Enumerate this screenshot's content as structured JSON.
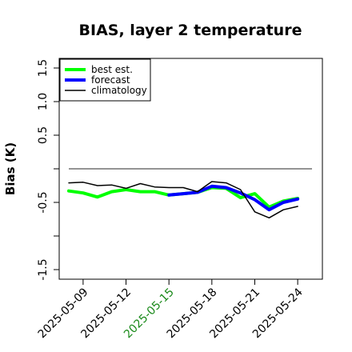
{
  "chart_data": {
    "type": "line",
    "title": "BIAS, layer 2 temperature",
    "xlabel": "",
    "ylabel": "Bias (K)",
    "ylim": [
      -1.6,
      1.6
    ],
    "y_ticks": [
      -1.5,
      -1.0,
      -0.5,
      0.0,
      0.5,
      1.0,
      1.5
    ],
    "y_tick_labels": [
      "-1.5",
      "",
      "-0.5",
      "",
      "0.5",
      "1.0",
      "1.5"
    ],
    "x_tick_labels": [
      "2025-05-09",
      "2025-05-12",
      "2025-05-15",
      "2025-05-18",
      "2025-05-21",
      "2025-05-24"
    ],
    "x_tick_label_colors": [
      "#000000",
      "#000000",
      "#1a8a1a",
      "#000000",
      "#000000",
      "#000000"
    ],
    "x_start": "2025-05-08",
    "x_end": "2025-05-25",
    "reference_line": 0.0,
    "legend_position": "top-left",
    "grid": false,
    "series": [
      {
        "name": "best est.",
        "color": "#00ff00",
        "dates": [
          "2025-05-08",
          "2025-05-09",
          "2025-05-10",
          "2025-05-11",
          "2025-05-12",
          "2025-05-13",
          "2025-05-14",
          "2025-05-15",
          "2025-05-16",
          "2025-05-17",
          "2025-05-18",
          "2025-05-19",
          "2025-05-20",
          "2025-05-21",
          "2025-05-22",
          "2025-05-23",
          "2025-05-24"
        ],
        "values": [
          -0.33,
          -0.36,
          -0.42,
          -0.34,
          -0.31,
          -0.34,
          -0.34,
          -0.39,
          -0.37,
          -0.35,
          -0.28,
          -0.29,
          -0.43,
          -0.37,
          -0.57,
          -0.48,
          -0.44
        ]
      },
      {
        "name": "forecast",
        "color": "#0000ff",
        "dates": [
          "2025-05-15",
          "2025-05-16",
          "2025-05-17",
          "2025-05-18",
          "2025-05-19",
          "2025-05-20",
          "2025-05-21",
          "2025-05-22",
          "2025-05-23",
          "2025-05-24"
        ],
        "values": [
          -0.39,
          -0.37,
          -0.35,
          -0.26,
          -0.28,
          -0.36,
          -0.46,
          -0.61,
          -0.5,
          -0.45
        ]
      },
      {
        "name": "climatology",
        "color": "#000000",
        "dates": [
          "2025-05-08",
          "2025-05-09",
          "2025-05-10",
          "2025-05-11",
          "2025-05-12",
          "2025-05-13",
          "2025-05-14",
          "2025-05-15",
          "2025-05-16",
          "2025-05-17",
          "2025-05-18",
          "2025-05-19",
          "2025-05-20",
          "2025-05-21",
          "2025-05-22",
          "2025-05-23",
          "2025-05-24"
        ],
        "values": [
          -0.21,
          -0.2,
          -0.25,
          -0.24,
          -0.29,
          -0.22,
          -0.27,
          -0.28,
          -0.28,
          -0.34,
          -0.19,
          -0.21,
          -0.31,
          -0.64,
          -0.73,
          -0.61,
          -0.56
        ]
      }
    ]
  }
}
